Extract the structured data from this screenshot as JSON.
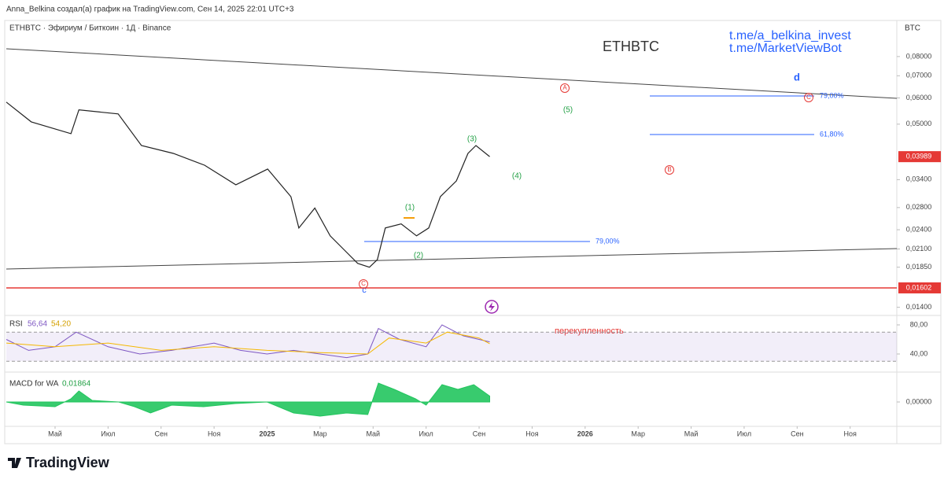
{
  "header": {
    "author_line": "Anna_Belkina создал(а) график на TradingView.com, Сен 14, 2025 22:01 UTC+3",
    "symbol_line": "ETHBTC · Эфириум / Биткоин · 1Д · Binance",
    "chart_title": "ETHBTC",
    "links": [
      "t.me/a_belkina_invest",
      "t.me/MarketViewBot"
    ],
    "currency": "BTC",
    "logo": "TradingView"
  },
  "chart_data": {
    "type": "line",
    "log_scale": true,
    "xlim": [
      -0.92,
      15.88
    ],
    "ylim": [
      0.0133,
      0.1017
    ],
    "xticks": [
      {
        "value": 0,
        "label": "Май"
      },
      {
        "value": 1,
        "label": "Июл"
      },
      {
        "value": 2,
        "label": "Сен"
      },
      {
        "value": 3,
        "label": "Ноя"
      },
      {
        "value": 4,
        "label": "2025"
      },
      {
        "value": 5,
        "label": "Мар"
      },
      {
        "value": 6,
        "label": "Май"
      },
      {
        "value": 7,
        "label": "Июл"
      },
      {
        "value": 8,
        "label": "Сен"
      },
      {
        "value": 9,
        "label": "Ноя"
      },
      {
        "value": 10,
        "label": "2026"
      },
      {
        "value": 11,
        "label": "Мар"
      },
      {
        "value": 12,
        "label": "Май"
      },
      {
        "value": 13,
        "label": "Июл"
      },
      {
        "value": 14,
        "label": "Сен"
      },
      {
        "value": 15,
        "label": "Ноя"
      }
    ],
    "yticks": [
      {
        "value": 0.08,
        "label": "0,08000"
      },
      {
        "value": 0.07,
        "label": "0,07000"
      },
      {
        "value": 0.06,
        "label": "0,06000"
      },
      {
        "value": 0.05,
        "label": "0,05000"
      },
      {
        "value": 0.034,
        "label": "0,03400"
      },
      {
        "value": 0.028,
        "label": "0,02800"
      },
      {
        "value": 0.024,
        "label": "0,02400"
      },
      {
        "value": 0.021,
        "label": "0,02100"
      },
      {
        "value": 0.0185,
        "label": "0,01850"
      },
      {
        "value": 0.014,
        "label": "0,01400"
      }
    ],
    "price_tags": [
      {
        "value": 0.03989,
        "label": "0,03989",
        "color": "#e53935"
      },
      {
        "value": 0.01602,
        "label": "0,01602",
        "color": "#e53935"
      }
    ],
    "series": [
      {
        "name": "ETHBTC",
        "color": "#222222",
        "x": [
          -0.92,
          -0.45,
          0.3,
          0.45,
          1.19,
          1.63,
          2.23,
          2.82,
          3.41,
          4.01,
          4.45,
          4.6,
          4.9,
          5.19,
          5.49,
          5.71,
          5.93,
          6.08,
          6.23,
          6.53,
          6.82,
          7.05,
          7.27,
          7.57,
          7.79,
          7.94,
          8.2
        ],
        "values": [
          0.0583,
          0.0508,
          0.0468,
          0.0552,
          0.0537,
          0.0431,
          0.0408,
          0.0376,
          0.0328,
          0.0366,
          0.0302,
          0.0243,
          0.0279,
          0.023,
          0.0206,
          0.019,
          0.0185,
          0.0195,
          0.0243,
          0.025,
          0.023,
          0.0243,
          0.0302,
          0.0337,
          0.0408,
          0.0431,
          0.03989
        ]
      }
    ]
  },
  "annotations": {
    "waves": [
      "(1)",
      "(2)",
      "(3)",
      "(4)",
      "(5)"
    ],
    "circled": [
      "A",
      "B",
      "C",
      "C"
    ],
    "letters": [
      "d",
      "c"
    ],
    "fib": [
      "79,00%",
      "61,80%",
      "79,00%"
    ]
  },
  "rsi": {
    "title": "RSI",
    "values": [
      56.64,
      54.2
    ],
    "value_labels": [
      "56,64",
      "54,20"
    ],
    "note": "перекупленность",
    "ylim": [
      18.4,
      90.8
    ],
    "band": [
      30,
      70
    ],
    "yticks": [
      {
        "value": 80,
        "label": "80,00"
      },
      {
        "value": 40,
        "label": "40,00"
      }
    ],
    "series": [
      {
        "color": "#7e57c2",
        "x": [
          -0.92,
          -0.5,
          0,
          0.4,
          1,
          1.6,
          2.2,
          3,
          3.5,
          4,
          4.5,
          5,
          5.5,
          5.9,
          6.1,
          6.5,
          7,
          7.3,
          7.7,
          8,
          8.2
        ],
        "values": [
          60,
          45,
          50,
          70,
          50,
          40,
          45,
          55,
          45,
          40,
          45,
          40,
          35,
          40,
          75,
          60,
          50,
          80,
          65,
          60,
          56.64
        ]
      },
      {
        "color": "#f5b800",
        "x": [
          -0.92,
          0,
          1,
          2,
          3,
          4,
          5,
          5.9,
          6.3,
          7,
          7.4,
          8,
          8.2
        ],
        "values": [
          55,
          50,
          55,
          45,
          50,
          45,
          42,
          40,
          62,
          55,
          70,
          62,
          54.2
        ]
      }
    ]
  },
  "macd": {
    "title": "MACD for WA",
    "value": 0.01864,
    "value_label": "0,01864",
    "color": "#22c55e",
    "ylim": [
      -0.0725,
      0.09
    ],
    "yticks": [
      {
        "value": 0,
        "label": "0,00000"
      }
    ],
    "x": [
      -0.92,
      -0.6,
      0,
      0.3,
      0.45,
      0.7,
      1.2,
      1.5,
      1.8,
      2.2,
      2.8,
      3.4,
      4,
      4.5,
      5,
      5.5,
      5.9,
      6.1,
      6.4,
      6.8,
      7,
      7.3,
      7.6,
      7.9,
      8.2
    ],
    "values": [
      0,
      -0.01,
      -0.015,
      0.01,
      0.035,
      0.005,
      0,
      -0.015,
      -0.035,
      -0.01,
      -0.015,
      -0.005,
      0,
      -0.035,
      -0.045,
      -0.035,
      -0.04,
      0.06,
      0.04,
      0.01,
      -0.01,
      0.055,
      0.04,
      0.055,
      0.01864
    ]
  }
}
